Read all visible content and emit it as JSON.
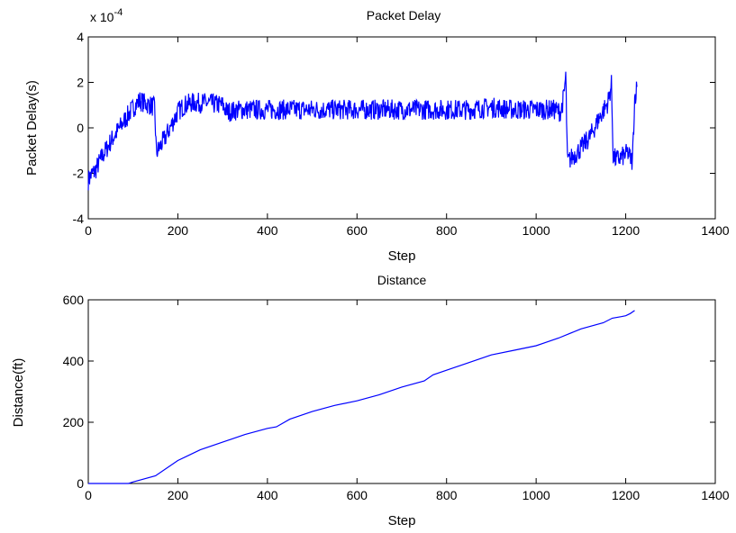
{
  "chart_data": [
    {
      "type": "line",
      "title": "Packet Delay",
      "xlabel": "Step",
      "ylabel": "Packet Delay(s)",
      "exponent_label": "x 10",
      "exponent": "-4",
      "xlim": [
        0,
        1400
      ],
      "ylim": [
        -4,
        4
      ],
      "y_multiplier": 0.0001,
      "xticks": [
        "0",
        "200",
        "400",
        "600",
        "800",
        "1000",
        "1200",
        "1400"
      ],
      "yticks": [
        "-4",
        "-2",
        "0",
        "2",
        "4"
      ],
      "xtick_values": [
        0,
        200,
        400,
        600,
        800,
        1000,
        1200,
        1400
      ],
      "ytick_values": [
        -4,
        -2,
        0,
        2,
        4
      ],
      "grid": false,
      "line_color": "#0000ff",
      "series": [
        {
          "x": [
            0,
            5,
            15,
            30,
            50,
            70,
            90,
            105,
            115,
            125,
            138,
            148,
            152,
            158,
            170,
            185,
            200,
            215,
            230,
            260,
            300,
            310,
            340,
            400,
            450,
            500,
            550,
            600,
            650,
            700,
            750,
            800,
            850,
            900,
            950,
            1000,
            1040,
            1055,
            1062,
            1066,
            1070,
            1085,
            1100,
            1120,
            1140,
            1160,
            1168,
            1172,
            1178,
            1190,
            1205,
            1215,
            1220,
            1225
          ],
          "y": [
            -2.3,
            -2.1,
            -1.9,
            -1.3,
            -0.6,
            0.0,
            0.6,
            1.0,
            1.2,
            1.1,
            1.0,
            0.9,
            -1.1,
            -0.9,
            -0.5,
            0.1,
            0.7,
            1.0,
            1.1,
            1.1,
            1.0,
            0.7,
            0.8,
            0.8,
            0.8,
            0.8,
            0.8,
            0.8,
            0.8,
            0.8,
            0.8,
            0.8,
            0.8,
            0.9,
            0.8,
            0.8,
            0.8,
            0.7,
            1.4,
            2.3,
            -1.5,
            -1.2,
            -0.9,
            -0.4,
            0.4,
            1.1,
            1.9,
            -1.2,
            -1.4,
            -1.3,
            -1.1,
            -1.5,
            1.3,
            1.8
          ]
        }
      ]
    },
    {
      "type": "line",
      "title": "Distance",
      "xlabel": "Step",
      "ylabel": "Distance(ft)",
      "xlim": [
        0,
        1400
      ],
      "ylim": [
        0,
        600
      ],
      "xticks": [
        "0",
        "200",
        "400",
        "600",
        "800",
        "1000",
        "1200",
        "1400"
      ],
      "yticks": [
        "0",
        "200",
        "400",
        "600"
      ],
      "xtick_values": [
        0,
        200,
        400,
        600,
        800,
        1000,
        1200,
        1400
      ],
      "ytick_values": [
        0,
        200,
        400,
        600
      ],
      "grid": false,
      "line_color": "#0000ff",
      "series": [
        {
          "x": [
            0,
            90,
            100,
            150,
            200,
            250,
            300,
            350,
            400,
            420,
            450,
            500,
            550,
            600,
            650,
            700,
            750,
            770,
            800,
            850,
            900,
            950,
            1000,
            1050,
            1100,
            1150,
            1170,
            1190,
            1200,
            1210,
            1220
          ],
          "y": [
            0,
            0,
            5,
            25,
            75,
            110,
            135,
            160,
            180,
            185,
            210,
            235,
            255,
            270,
            290,
            315,
            335,
            355,
            370,
            395,
            420,
            435,
            450,
            475,
            505,
            525,
            540,
            545,
            548,
            555,
            565
          ]
        }
      ]
    }
  ]
}
